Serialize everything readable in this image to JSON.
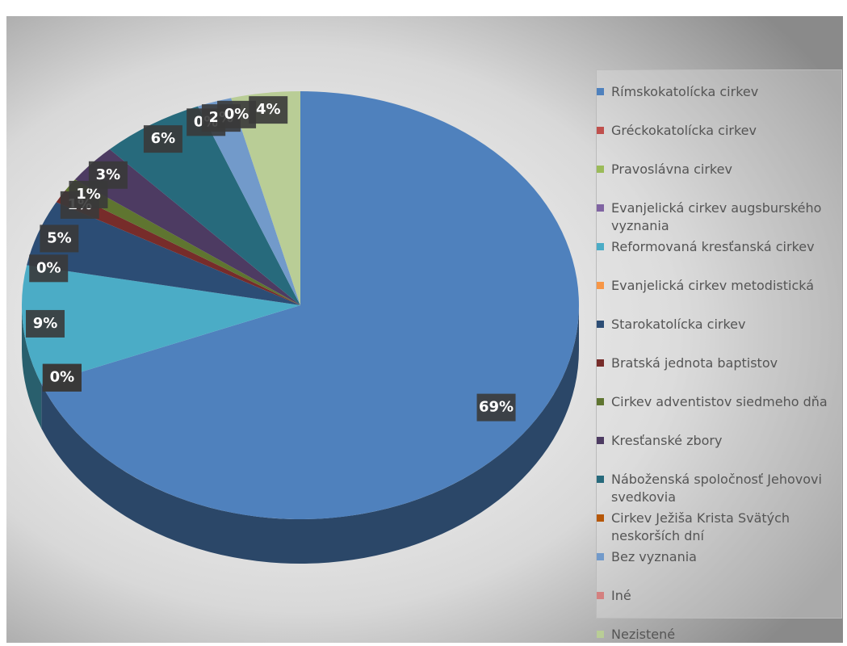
{
  "chart_data": {
    "type": "pie",
    "categories": [
      "Rímskokatolícka cirkev",
      "Gréckokatolícka cirkev",
      "Pravoslávna cirkev",
      "Evanjelická cirkev augsburského vyznania",
      "Reformovaná kresťanská cirkev",
      "Evanjelická cirkev metodistická",
      "Starokatolícka cirkev",
      "Bratská jednota baptistov",
      "Cirkev adventistov siedmeho dňa",
      "Kresťanské zbory",
      "Náboženská spoločnosť Jehovovi svedkovia",
      "Cirkev Ježiša Krista Svätých neskorších dní",
      "Bez vyznania",
      "Iné",
      "Nezistené"
    ],
    "values": [
      69,
      0,
      0,
      0,
      9,
      0,
      5,
      1,
      1,
      3,
      6,
      0,
      2,
      0,
      4
    ],
    "value_labels": [
      "69%",
      "0%",
      "0%",
      "0%",
      "9%",
      "0%",
      "5%",
      "1%",
      "1%",
      "3%",
      "6%",
      "0%",
      "2%",
      "0%",
      "4%"
    ],
    "colors": [
      "#4f81bd",
      "#c0504d",
      "#9bbb59",
      "#8064a2",
      "#4bacc6",
      "#f79646",
      "#2c4d75",
      "#772c2a",
      "#5f7530",
      "#4d3b62",
      "#276a7c",
      "#b65708",
      "#729aca",
      "#d4807f",
      "#b9cd96"
    ],
    "legend": "right"
  }
}
